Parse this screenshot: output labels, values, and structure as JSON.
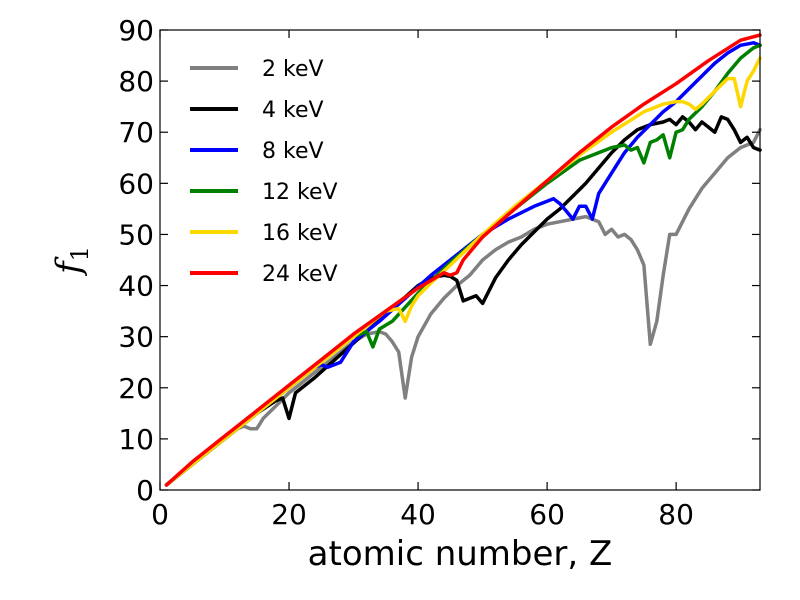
{
  "chart_data": {
    "type": "line",
    "xlabel": "atomic number, Z",
    "ylabel": "f",
    "ylabel_subscript": "1",
    "xlim": [
      0,
      93
    ],
    "ylim": [
      0,
      90
    ],
    "xticks": [
      0,
      20,
      40,
      60,
      80
    ],
    "yticks": [
      0,
      10,
      20,
      30,
      40,
      50,
      60,
      70,
      80,
      90
    ],
    "grid": false,
    "legend_position": "top-left",
    "series": [
      {
        "name": "2 keV",
        "color": "#808080",
        "x": [
          1,
          5,
          10,
          12,
          13,
          14,
          15,
          16,
          18,
          20,
          22,
          24,
          26,
          28,
          30,
          32,
          34,
          35,
          36,
          37,
          38,
          39,
          40,
          42,
          44,
          46,
          48,
          50,
          52,
          54,
          56,
          58,
          60,
          62,
          64,
          66,
          68,
          69,
          70,
          71,
          72,
          73,
          74,
          75,
          76,
          77,
          78,
          79,
          80,
          82,
          84,
          86,
          88,
          90,
          92,
          93
        ],
        "y": [
          1,
          5,
          10,
          12,
          12.5,
          12,
          12,
          14,
          16.5,
          19,
          21,
          23,
          25,
          27,
          29,
          30.5,
          31,
          30.5,
          29,
          27,
          18,
          26,
          30,
          34.5,
          37.5,
          40,
          42,
          45,
          47,
          48.5,
          49.5,
          51,
          52,
          52.5,
          53,
          53.5,
          52.5,
          50,
          51,
          49.5,
          50,
          49,
          47,
          44,
          28.5,
          33,
          42,
          50,
          50,
          55,
          59,
          62,
          65,
          67,
          68,
          70.5
        ]
      },
      {
        "name": "4 keV",
        "color": "#000000",
        "x": [
          1,
          5,
          10,
          15,
          18,
          19,
          20,
          21,
          24,
          28,
          32,
          36,
          40,
          42,
          44,
          45,
          46,
          47,
          48,
          49,
          50,
          52,
          54,
          56,
          58,
          60,
          62,
          64,
          66,
          68,
          70,
          72,
          74,
          76,
          78,
          79,
          80,
          81,
          82,
          83,
          84,
          85,
          86,
          87,
          88,
          89,
          90,
          91,
          92,
          93
        ],
        "y": [
          1,
          5,
          10,
          15,
          17.5,
          18,
          14,
          19,
          22,
          26.5,
          31,
          35.5,
          40,
          41.5,
          42,
          41.8,
          41,
          37,
          37.5,
          38,
          36.5,
          41.5,
          45,
          48,
          50.5,
          53,
          55,
          57.5,
          60,
          63,
          66,
          68.5,
          70.5,
          71.5,
          72,
          72.5,
          71.5,
          73,
          72,
          70.5,
          72,
          71,
          70,
          73,
          72.5,
          70.5,
          68,
          69,
          67,
          66.5
        ]
      },
      {
        "name": "8 keV",
        "color": "#0000ff",
        "x": [
          1,
          5,
          10,
          15,
          20,
          24,
          25,
          26,
          27,
          28,
          30,
          34,
          38,
          42,
          46,
          50,
          54,
          58,
          60,
          61,
          62,
          63,
          64,
          65,
          66,
          67,
          68,
          70,
          72,
          74,
          76,
          78,
          80,
          82,
          84,
          86,
          88,
          90,
          92,
          93
        ],
        "y": [
          1,
          5,
          10,
          15,
          20,
          24,
          24.5,
          24,
          24.5,
          25,
          29,
          33,
          37.5,
          42,
          46,
          50,
          53,
          55.5,
          56.5,
          57,
          56,
          54.5,
          53,
          55.5,
          55.5,
          53,
          58,
          62,
          66,
          69,
          71.5,
          74,
          76,
          78.5,
          81,
          83.5,
          85.5,
          87,
          87.5,
          87
        ]
      },
      {
        "name": "12 keV",
        "color": "#008000",
        "x": [
          1,
          5,
          10,
          15,
          20,
          25,
          30,
          32,
          33,
          34,
          36,
          40,
          45,
          50,
          55,
          60,
          65,
          70,
          72,
          73,
          74,
          75,
          76,
          77,
          78,
          79,
          80,
          81,
          82,
          84,
          86,
          88,
          90,
          92,
          93
        ],
        "y": [
          1,
          5,
          10,
          15,
          20,
          25,
          30,
          31,
          28,
          31.5,
          33,
          38.5,
          44.5,
          50,
          55,
          60,
          64.5,
          67,
          67.5,
          66.5,
          67,
          64,
          68,
          68.5,
          69.5,
          65,
          70,
          70.5,
          72.5,
          75,
          78,
          81.5,
          84.5,
          86.5,
          87
        ]
      },
      {
        "name": "16 keV",
        "color": "#ffd700",
        "x": [
          1,
          5,
          10,
          15,
          20,
          25,
          30,
          35,
          37,
          38,
          39,
          40,
          42,
          45,
          50,
          55,
          60,
          65,
          70,
          75,
          78,
          80,
          81,
          82,
          83,
          84,
          86,
          88,
          89,
          90,
          91,
          92,
          93
        ],
        "y": [
          1,
          5,
          10,
          15,
          20,
          25,
          30,
          35,
          35.5,
          33,
          36,
          38,
          40.5,
          44,
          50,
          55.5,
          60.5,
          65.5,
          70,
          74,
          75.5,
          76,
          76,
          75.5,
          74.5,
          75.5,
          78,
          80.5,
          80.5,
          75,
          80,
          82,
          84.5
        ]
      },
      {
        "name": "24 keV",
        "color": "#ff0000",
        "x": [
          1,
          5,
          10,
          15,
          20,
          25,
          30,
          35,
          40,
          44,
          45,
          46,
          47,
          50,
          55,
          60,
          65,
          70,
          75,
          80,
          85,
          90,
          93
        ],
        "y": [
          1,
          5.5,
          10.5,
          15.5,
          20.5,
          25.5,
          30.5,
          35,
          39.5,
          42.5,
          42,
          42.5,
          45,
          49.5,
          55,
          60.5,
          66,
          71,
          75.5,
          79.5,
          84,
          88,
          89
        ]
      }
    ]
  }
}
